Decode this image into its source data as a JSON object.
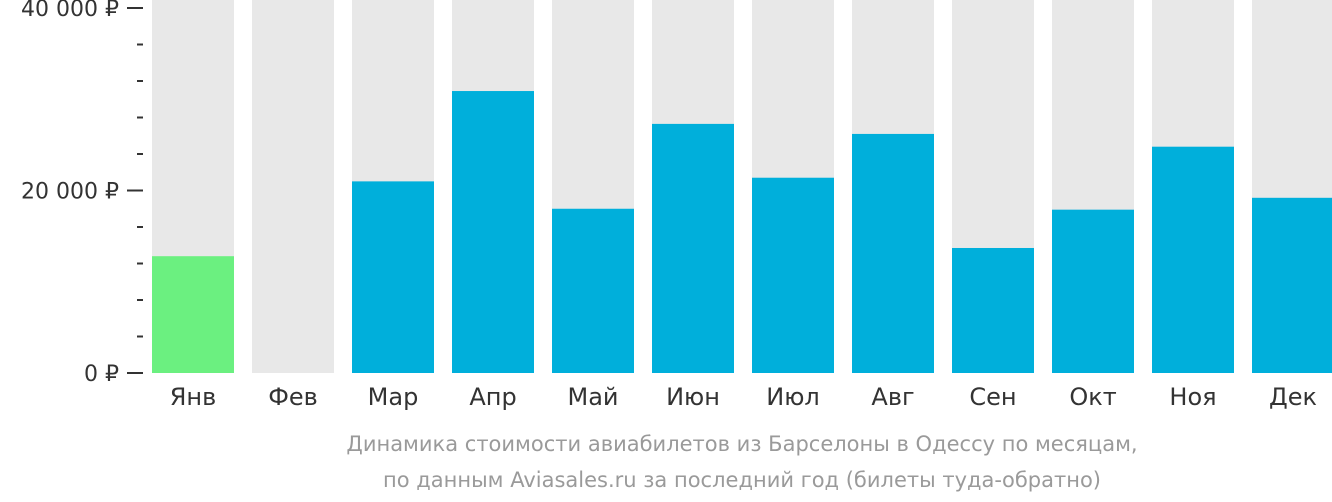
{
  "chart_data": {
    "type": "bar",
    "categories": [
      "Янв",
      "Фев",
      "Мар",
      "Апр",
      "Май",
      "Июн",
      "Июл",
      "Авг",
      "Сен",
      "Окт",
      "Ноя",
      "Дек"
    ],
    "values": [
      12800,
      null,
      21000,
      30900,
      18000,
      27300,
      21400,
      26200,
      13700,
      17900,
      24800,
      19200
    ],
    "highlight_index": 0,
    "ylim": [
      0,
      40000
    ],
    "yticks": [
      {
        "value": 0,
        "label": "0 ₽"
      },
      {
        "value": 20000,
        "label": "20 000 ₽"
      },
      {
        "value": 40000,
        "label": "40 000 ₽"
      }
    ],
    "minor_tick_step": 4000,
    "colors": {
      "bar": "#00afdb",
      "highlight": "#6bf080",
      "background_bar": "#e8e8e8",
      "axis": "#333333"
    }
  },
  "caption": {
    "line1": "Динамика стоимости авиабилетов из Барселоны в Одессу по месяцам,",
    "line2": "по данным Aviasales.ru за последний год (билеты туда-обратно)"
  }
}
